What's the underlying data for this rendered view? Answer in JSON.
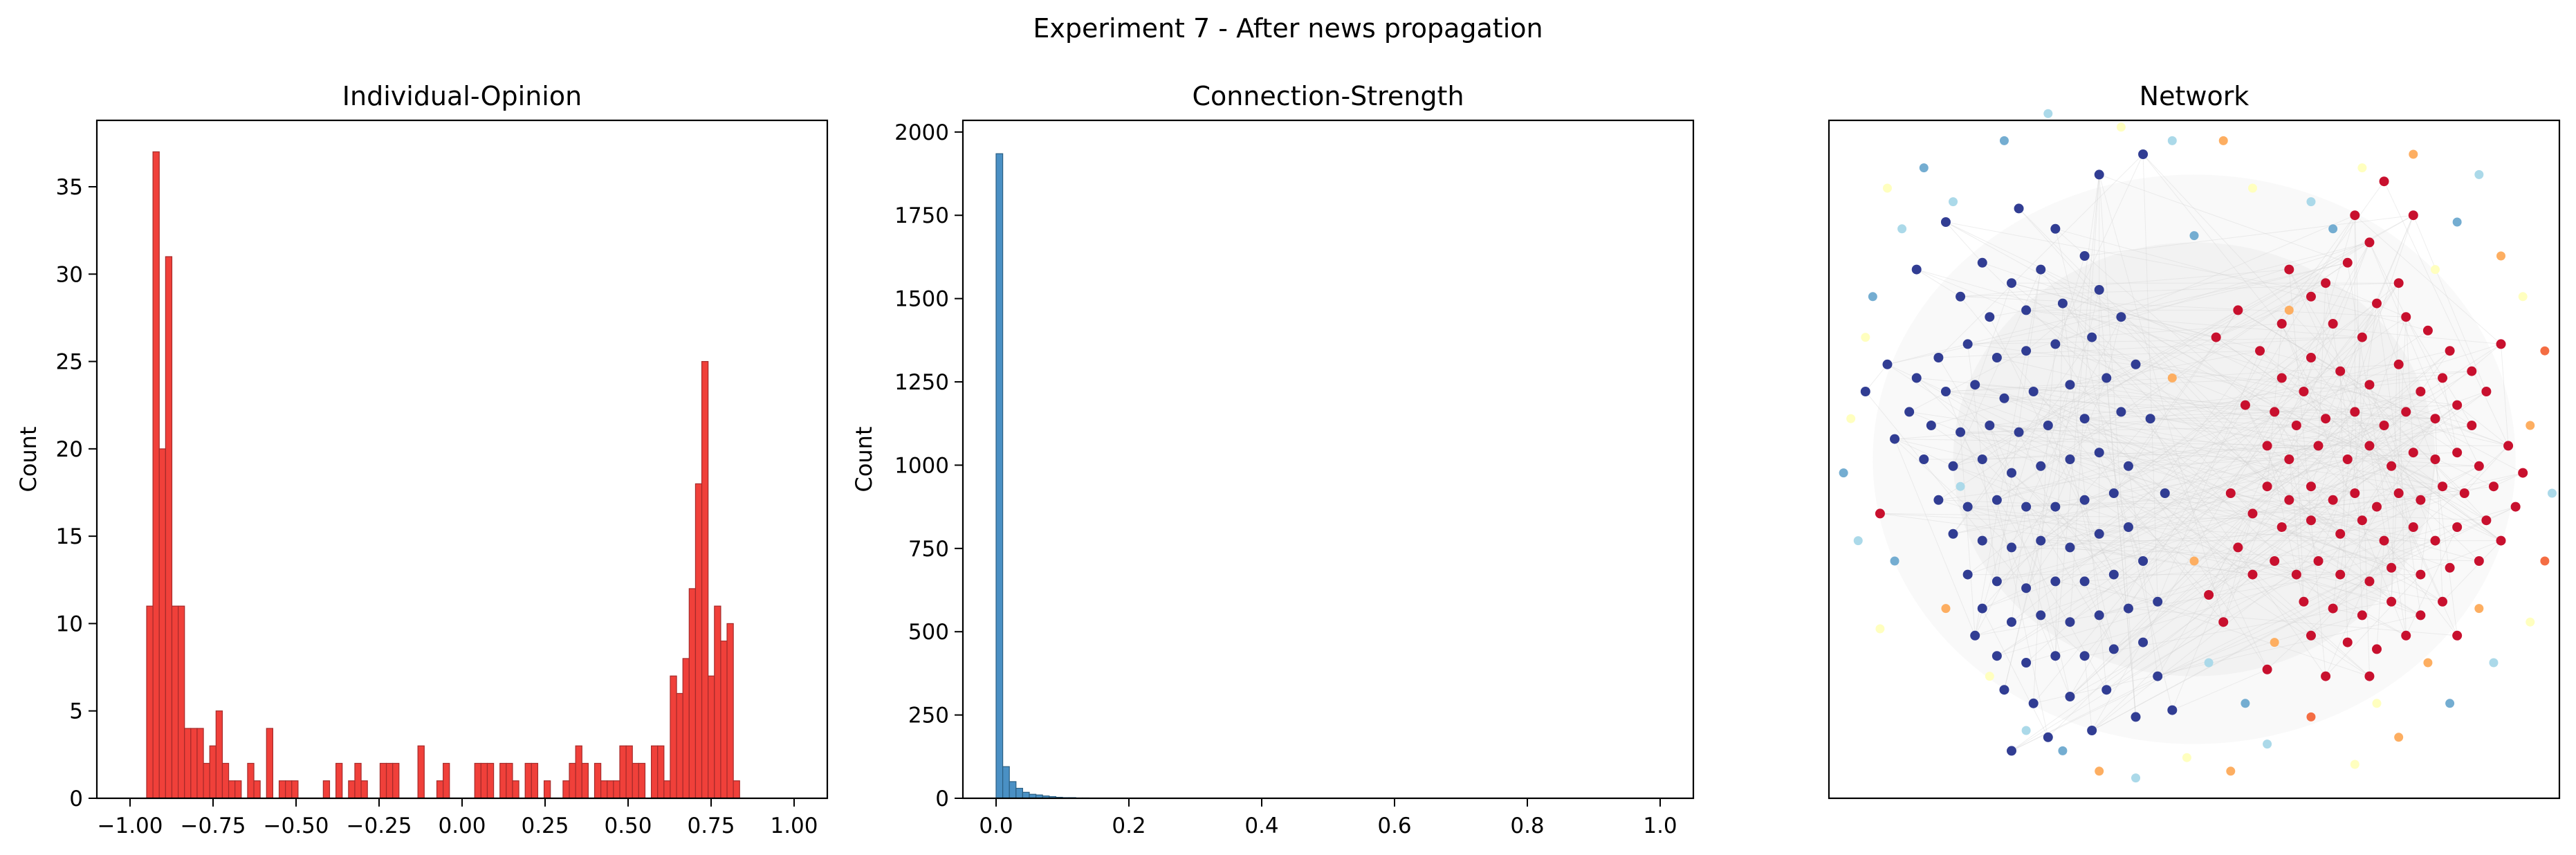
{
  "figure": {
    "suptitle": "Experiment 7 - After news propagation"
  },
  "chart_data": [
    {
      "type": "bar",
      "title": "Individual-Opinion",
      "xlabel": "",
      "ylabel": "Count",
      "xlim": [
        -1.1,
        1.1
      ],
      "ylim": [
        0,
        38.8
      ],
      "xticks": [
        -1.0,
        -0.75,
        -0.5,
        -0.25,
        0.0,
        0.25,
        0.5,
        0.75,
        1.0
      ],
      "xtick_labels": [
        "−1.00",
        "−0.75",
        "−0.50",
        "−0.25",
        "0.00",
        "0.25",
        "0.50",
        "0.75",
        "1.00"
      ],
      "yticks": [
        0,
        5,
        10,
        15,
        20,
        25,
        30,
        35
      ],
      "ytick_labels": [
        "0",
        "5",
        "10",
        "15",
        "20",
        "25",
        "30",
        "35"
      ],
      "bin_start": -0.95,
      "bin_width": 0.019,
      "counts": [
        11,
        37,
        20,
        31,
        11,
        11,
        4,
        4,
        4,
        2,
        3,
        5,
        2,
        1,
        1,
        0,
        2,
        1,
        0,
        4,
        0,
        1,
        1,
        1,
        0,
        0,
        0,
        0,
        1,
        0,
        2,
        0,
        1,
        2,
        1,
        0,
        0,
        2,
        2,
        2,
        0,
        0,
        0,
        3,
        0,
        0,
        1,
        2,
        0,
        0,
        0,
        0,
        2,
        2,
        2,
        0,
        2,
        2,
        1,
        0,
        2,
        2,
        0,
        1,
        0,
        0,
        1,
        2,
        3,
        2,
        0,
        2,
        1,
        1,
        1,
        3,
        3,
        2,
        2,
        0,
        3,
        3,
        1,
        7,
        6,
        8,
        12,
        18,
        25,
        7,
        11,
        9,
        10,
        1
      ],
      "color": "#f0403a",
      "edge_color": "#a52a2a"
    },
    {
      "type": "bar",
      "title": "Connection-Strength",
      "xlabel": "",
      "ylabel": "Count",
      "xlim": [
        -0.05,
        1.05
      ],
      "ylim": [
        0,
        2035
      ],
      "xticks": [
        0.0,
        0.2,
        0.4,
        0.6,
        0.8,
        1.0
      ],
      "xtick_labels": [
        "0.0",
        "0.2",
        "0.4",
        "0.6",
        "0.8",
        "1.0"
      ],
      "yticks": [
        0,
        250,
        500,
        750,
        1000,
        1250,
        1500,
        1750,
        2000
      ],
      "ytick_labels": [
        "0",
        "250",
        "500",
        "750",
        "1000",
        "1250",
        "1500",
        "1750",
        "2000"
      ],
      "bin_start": 0.0,
      "bin_width": 0.01,
      "counts": [
        1935,
        95,
        50,
        30,
        18,
        12,
        10,
        7,
        5,
        3,
        2,
        2,
        1,
        1
      ],
      "color": "#4a90c4",
      "edge_color": "#2b5f82"
    },
    {
      "type": "scatter",
      "title": "Network",
      "xlim": [
        0,
        1
      ],
      "ylim": [
        0,
        1
      ],
      "colormap": [
        "#313695",
        "#4575b4",
        "#74add1",
        "#abd9e9",
        "#ffffbf",
        "#fdae61",
        "#f46d43",
        "#d73027",
        "#a50026"
      ],
      "node_color_red": "#c8102e",
      "node_color_blue": "#313d93",
      "edge_color": "#d0d0d0",
      "nodes_red": [
        [
          0.74,
          0.82
        ],
        [
          0.71,
          0.79
        ],
        [
          0.68,
          0.76
        ],
        [
          0.75,
          0.73
        ],
        [
          0.79,
          0.71
        ],
        [
          0.73,
          0.68
        ],
        [
          0.69,
          0.7
        ],
        [
          0.66,
          0.65
        ],
        [
          0.62,
          0.62
        ],
        [
          0.65,
          0.6
        ],
        [
          0.7,
          0.63
        ],
        [
          0.74,
          0.61
        ],
        [
          0.78,
          0.64
        ],
        [
          0.81,
          0.6
        ],
        [
          0.84,
          0.62
        ],
        [
          0.86,
          0.58
        ],
        [
          0.88,
          0.55
        ],
        [
          0.83,
          0.56
        ],
        [
          0.79,
          0.57
        ],
        [
          0.76,
          0.55
        ],
        [
          0.72,
          0.57
        ],
        [
          0.68,
          0.56
        ],
        [
          0.64,
          0.55
        ],
        [
          0.61,
          0.57
        ],
        [
          0.6,
          0.52
        ],
        [
          0.63,
          0.5
        ],
        [
          0.67,
          0.52
        ],
        [
          0.71,
          0.5
        ],
        [
          0.74,
          0.52
        ],
        [
          0.77,
          0.49
        ],
        [
          0.8,
          0.51
        ],
        [
          0.83,
          0.5
        ],
        [
          0.86,
          0.51
        ],
        [
          0.89,
          0.49
        ],
        [
          0.91,
          0.46
        ],
        [
          0.87,
          0.45
        ],
        [
          0.84,
          0.46
        ],
        [
          0.81,
          0.44
        ],
        [
          0.78,
          0.45
        ],
        [
          0.75,
          0.43
        ],
        [
          0.72,
          0.45
        ],
        [
          0.69,
          0.44
        ],
        [
          0.66,
          0.46
        ],
        [
          0.63,
          0.44
        ],
        [
          0.6,
          0.46
        ],
        [
          0.58,
          0.42
        ],
        [
          0.62,
          0.4
        ],
        [
          0.66,
          0.41
        ],
        [
          0.7,
          0.39
        ],
        [
          0.73,
          0.41
        ],
        [
          0.76,
          0.38
        ],
        [
          0.8,
          0.4
        ],
        [
          0.83,
          0.38
        ],
        [
          0.86,
          0.4
        ],
        [
          0.9,
          0.41
        ],
        [
          0.92,
          0.38
        ],
        [
          0.89,
          0.35
        ],
        [
          0.85,
          0.34
        ],
        [
          0.81,
          0.33
        ],
        [
          0.77,
          0.34
        ],
        [
          0.74,
          0.32
        ],
        [
          0.7,
          0.33
        ],
        [
          0.67,
          0.35
        ],
        [
          0.64,
          0.33
        ],
        [
          0.61,
          0.35
        ],
        [
          0.65,
          0.29
        ],
        [
          0.69,
          0.28
        ],
        [
          0.73,
          0.27
        ],
        [
          0.77,
          0.29
        ],
        [
          0.81,
          0.27
        ],
        [
          0.84,
          0.29
        ],
        [
          0.79,
          0.24
        ],
        [
          0.75,
          0.22
        ],
        [
          0.71,
          0.23
        ],
        [
          0.66,
          0.24
        ],
        [
          0.56,
          0.37
        ],
        [
          0.58,
          0.33
        ],
        [
          0.55,
          0.45
        ],
        [
          0.57,
          0.58
        ],
        [
          0.59,
          0.66
        ],
        [
          0.62,
          0.7
        ],
        [
          0.66,
          0.74
        ],
        [
          0.72,
          0.86
        ],
        [
          0.78,
          0.76
        ],
        [
          0.82,
          0.69
        ],
        [
          0.85,
          0.66
        ],
        [
          0.88,
          0.63
        ],
        [
          0.9,
          0.6
        ],
        [
          0.93,
          0.52
        ],
        [
          0.95,
          0.48
        ],
        [
          0.52,
          0.3
        ],
        [
          0.54,
          0.26
        ],
        [
          0.86,
          0.24
        ],
        [
          0.6,
          0.19
        ],
        [
          0.68,
          0.18
        ],
        [
          0.74,
          0.18
        ],
        [
          0.07,
          0.42
        ],
        [
          0.53,
          0.68
        ],
        [
          0.56,
          0.72
        ],
        [
          0.8,
          0.86
        ],
        [
          0.76,
          0.91
        ],
        [
          0.92,
          0.67
        ],
        [
          0.94,
          0.43
        ],
        [
          0.63,
          0.78
        ]
      ],
      "nodes_blue": [
        [
          0.26,
          0.87
        ],
        [
          0.31,
          0.84
        ],
        [
          0.35,
          0.8
        ],
        [
          0.29,
          0.78
        ],
        [
          0.25,
          0.76
        ],
        [
          0.21,
          0.79
        ],
        [
          0.18,
          0.74
        ],
        [
          0.22,
          0.71
        ],
        [
          0.27,
          0.72
        ],
        [
          0.32,
          0.73
        ],
        [
          0.37,
          0.75
        ],
        [
          0.4,
          0.71
        ],
        [
          0.36,
          0.68
        ],
        [
          0.31,
          0.67
        ],
        [
          0.27,
          0.66
        ],
        [
          0.23,
          0.65
        ],
        [
          0.19,
          0.67
        ],
        [
          0.15,
          0.65
        ],
        [
          0.12,
          0.62
        ],
        [
          0.16,
          0.6
        ],
        [
          0.2,
          0.61
        ],
        [
          0.24,
          0.59
        ],
        [
          0.28,
          0.6
        ],
        [
          0.33,
          0.61
        ],
        [
          0.38,
          0.62
        ],
        [
          0.42,
          0.64
        ],
        [
          0.4,
          0.57
        ],
        [
          0.35,
          0.56
        ],
        [
          0.3,
          0.55
        ],
        [
          0.26,
          0.54
        ],
        [
          0.22,
          0.55
        ],
        [
          0.18,
          0.54
        ],
        [
          0.14,
          0.55
        ],
        [
          0.11,
          0.57
        ],
        [
          0.09,
          0.53
        ],
        [
          0.13,
          0.5
        ],
        [
          0.17,
          0.49
        ],
        [
          0.21,
          0.5
        ],
        [
          0.25,
          0.48
        ],
        [
          0.29,
          0.49
        ],
        [
          0.33,
          0.5
        ],
        [
          0.37,
          0.51
        ],
        [
          0.41,
          0.49
        ],
        [
          0.39,
          0.45
        ],
        [
          0.35,
          0.44
        ],
        [
          0.31,
          0.43
        ],
        [
          0.27,
          0.43
        ],
        [
          0.23,
          0.44
        ],
        [
          0.19,
          0.43
        ],
        [
          0.15,
          0.44
        ],
        [
          0.17,
          0.39
        ],
        [
          0.21,
          0.38
        ],
        [
          0.25,
          0.37
        ],
        [
          0.29,
          0.38
        ],
        [
          0.33,
          0.37
        ],
        [
          0.37,
          0.39
        ],
        [
          0.41,
          0.4
        ],
        [
          0.43,
          0.35
        ],
        [
          0.39,
          0.33
        ],
        [
          0.35,
          0.32
        ],
        [
          0.31,
          0.32
        ],
        [
          0.27,
          0.31
        ],
        [
          0.23,
          0.32
        ],
        [
          0.19,
          0.33
        ],
        [
          0.21,
          0.28
        ],
        [
          0.25,
          0.26
        ],
        [
          0.29,
          0.27
        ],
        [
          0.33,
          0.26
        ],
        [
          0.37,
          0.27
        ],
        [
          0.41,
          0.28
        ],
        [
          0.45,
          0.29
        ],
        [
          0.43,
          0.23
        ],
        [
          0.39,
          0.22
        ],
        [
          0.35,
          0.21
        ],
        [
          0.31,
          0.21
        ],
        [
          0.27,
          0.2
        ],
        [
          0.23,
          0.21
        ],
        [
          0.2,
          0.24
        ],
        [
          0.24,
          0.16
        ],
        [
          0.28,
          0.14
        ],
        [
          0.33,
          0.15
        ],
        [
          0.38,
          0.16
        ],
        [
          0.45,
          0.18
        ],
        [
          0.42,
          0.12
        ],
        [
          0.47,
          0.13
        ],
        [
          0.36,
          0.1
        ],
        [
          0.3,
          0.09
        ],
        [
          0.25,
          0.07
        ],
        [
          0.43,
          0.95
        ],
        [
          0.37,
          0.92
        ],
        [
          0.12,
          0.78
        ],
        [
          0.08,
          0.64
        ],
        [
          0.05,
          0.6
        ],
        [
          0.16,
          0.85
        ],
        [
          0.44,
          0.56
        ],
        [
          0.46,
          0.45
        ]
      ],
      "nodes_light": [
        [
          0.13,
          0.93,
          "#74add1"
        ],
        [
          0.17,
          0.88,
          "#abd9e9"
        ],
        [
          0.1,
          0.84,
          "#abd9e9"
        ],
        [
          0.06,
          0.74,
          "#74add1"
        ],
        [
          0.05,
          0.68,
          "#ffffbf"
        ],
        [
          0.03,
          0.56,
          "#ffffbf"
        ],
        [
          0.04,
          0.38,
          "#abd9e9"
        ],
        [
          0.09,
          0.35,
          "#74add1"
        ],
        [
          0.16,
          0.28,
          "#fdae61"
        ],
        [
          0.22,
          0.18,
          "#ffffbf"
        ],
        [
          0.27,
          0.1,
          "#abd9e9"
        ],
        [
          0.32,
          0.07,
          "#74add1"
        ],
        [
          0.37,
          0.04,
          "#fdae61"
        ],
        [
          0.42,
          0.03,
          "#abd9e9"
        ],
        [
          0.49,
          0.06,
          "#ffffbf"
        ],
        [
          0.55,
          0.04,
          "#fdae61"
        ],
        [
          0.6,
          0.08,
          "#abd9e9"
        ],
        [
          0.66,
          0.12,
          "#f46d43"
        ],
        [
          0.72,
          0.05,
          "#ffffbf"
        ],
        [
          0.78,
          0.09,
          "#fdae61"
        ],
        [
          0.85,
          0.14,
          "#74add1"
        ],
        [
          0.91,
          0.2,
          "#abd9e9"
        ],
        [
          0.96,
          0.26,
          "#ffffbf"
        ],
        [
          0.98,
          0.35,
          "#f46d43"
        ],
        [
          0.99,
          0.45,
          "#abd9e9"
        ],
        [
          0.96,
          0.55,
          "#fdae61"
        ],
        [
          0.98,
          0.66,
          "#f46d43"
        ],
        [
          0.95,
          0.74,
          "#ffffbf"
        ],
        [
          0.92,
          0.8,
          "#fdae61"
        ],
        [
          0.86,
          0.85,
          "#74add1"
        ],
        [
          0.89,
          0.92,
          "#abd9e9"
        ],
        [
          0.8,
          0.95,
          "#fdae61"
        ],
        [
          0.73,
          0.93,
          "#ffffbf"
        ],
        [
          0.66,
          0.88,
          "#abd9e9"
        ],
        [
          0.58,
          0.9,
          "#ffffbf"
        ],
        [
          0.54,
          0.97,
          "#fdae61"
        ],
        [
          0.47,
          0.97,
          "#abd9e9"
        ],
        [
          0.4,
          0.99,
          "#ffffbf"
        ],
        [
          0.3,
          1.01,
          "#abd9e9"
        ],
        [
          0.24,
          0.97,
          "#74add1"
        ],
        [
          0.08,
          0.9,
          "#ffffbf"
        ],
        [
          0.02,
          0.48,
          "#74add1"
        ],
        [
          0.07,
          0.25,
          "#ffffbf"
        ],
        [
          0.5,
          0.35,
          "#fdae61"
        ],
        [
          0.61,
          0.23,
          "#fdae61"
        ],
        [
          0.52,
          0.2,
          "#abd9e9"
        ],
        [
          0.57,
          0.14,
          "#74add1"
        ],
        [
          0.75,
          0.14,
          "#ffffbf"
        ],
        [
          0.82,
          0.2,
          "#fdae61"
        ],
        [
          0.89,
          0.28,
          "#fdae61"
        ],
        [
          0.18,
          0.46,
          "#abd9e9"
        ],
        [
          0.47,
          0.62,
          "#fdae61"
        ],
        [
          0.63,
          0.72,
          "#fdae61"
        ],
        [
          0.5,
          0.83,
          "#74add1"
        ],
        [
          0.69,
          0.84,
          "#74add1"
        ],
        [
          0.83,
          0.78,
          "#ffffbf"
        ]
      ]
    }
  ]
}
